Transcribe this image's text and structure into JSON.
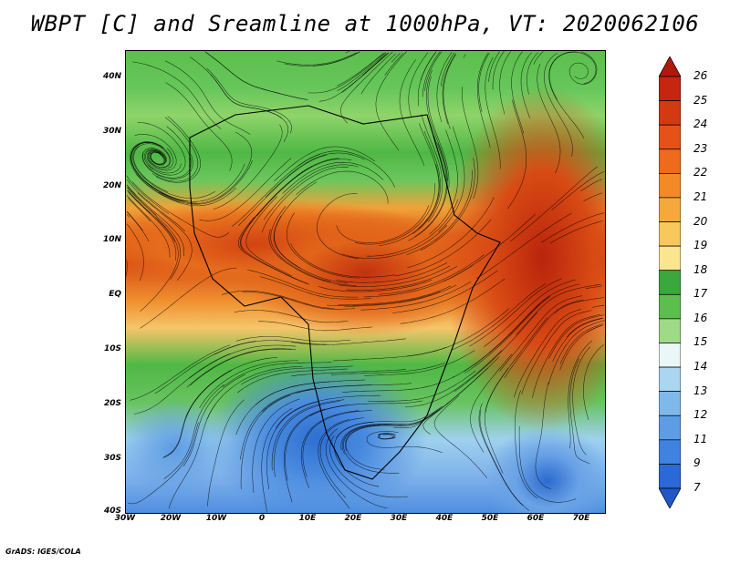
{
  "title": "WBPT [C] and Sreamline at 1000hPa, VT: 2020062106",
  "credit": "GrADS: IGES/COLA",
  "map": {
    "lat_labels": [
      "40N",
      "30N",
      "20N",
      "10N",
      "EQ",
      "10S",
      "20S",
      "30S",
      "40S"
    ],
    "lon_labels": [
      "30W",
      "20W",
      "10W",
      "0",
      "10E",
      "20E",
      "30E",
      "40E",
      "50E",
      "60E",
      "70E"
    ],
    "lat_range": [
      -40,
      45
    ],
    "lon_range": [
      -30,
      75
    ]
  },
  "colorbar": {
    "labels": [
      "26",
      "25",
      "24",
      "23",
      "22",
      "21",
      "20",
      "19",
      "18",
      "17",
      "16",
      "15",
      "14",
      "13",
      "12",
      "11",
      "9",
      "7"
    ],
    "colors": [
      "#b0180c",
      "#c4260e",
      "#d43a12",
      "#e45217",
      "#ee6a1d",
      "#f48a26",
      "#f6a93a",
      "#f8c85c",
      "#fbe58e",
      "#3aa83c",
      "#5cbf4c",
      "#9fda88",
      "#eaf7f7",
      "#aad6f2",
      "#7fb9ec",
      "#5c9de6",
      "#3f82df",
      "#2a69d6",
      "#1f57c9"
    ]
  }
}
